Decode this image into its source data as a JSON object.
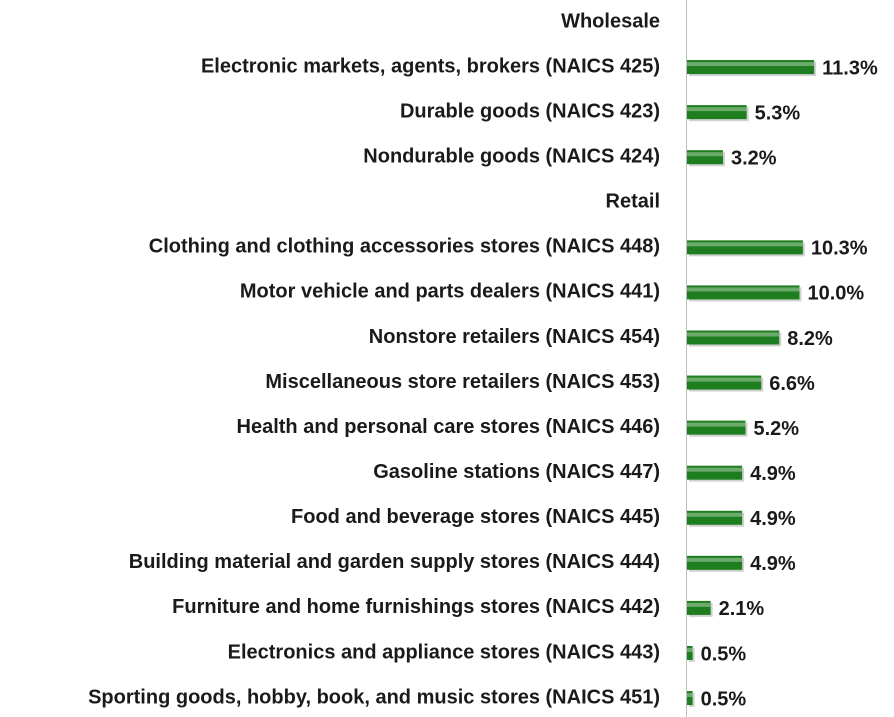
{
  "chart_data": {
    "type": "hbar",
    "categories": [
      "Wholesale",
      "Electronic markets, agents, brokers  (NAICS 425)",
      "Durable goods  (NAICS 423)",
      "Nondurable goods  (NAICS 424)",
      "Retail",
      "Clothing and clothing accessories stores (NAICS 448)",
      "Motor vehicle and parts dealers  (NAICS 441)",
      "Nonstore retailers (NAICS 454)",
      "Miscellaneous store retailers (NAICS 453)",
      "Health and personal care stores (NAICS 446)",
      "Gasoline stations (NAICS 447)",
      "Food and beverage stores (NAICS 445)",
      "Building material and garden supply stores (NAICS 444)",
      "Furniture and home furnishings stores  (NAICS 442)",
      "Electronics and appliance stores  (NAICS 443)",
      "Sporting goods, hobby, book, and music stores (NAICS 451)"
    ],
    "values": [
      null,
      11.3,
      5.3,
      3.2,
      null,
      10.3,
      10.0,
      8.2,
      6.6,
      5.2,
      4.9,
      4.9,
      4.9,
      2.1,
      0.5,
      0.5
    ],
    "value_labels": [
      null,
      "11.3%",
      "5.3%",
      "3.2%",
      null,
      "10.3%",
      "10.0%",
      "8.2%",
      "6.6%",
      "5.2%",
      "4.9%",
      "4.9%",
      "4.9%",
      "2.1%",
      "0.5%",
      "0.5%"
    ],
    "color": "#1e7d1e",
    "xlim": [
      0,
      18.4
    ]
  }
}
